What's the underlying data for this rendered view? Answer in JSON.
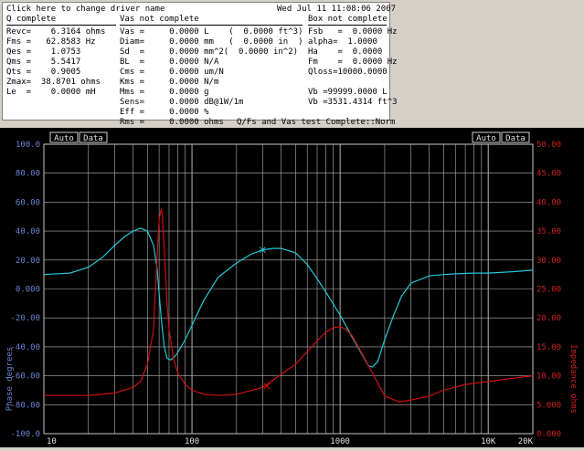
{
  "info": {
    "driver_link": "Click here to change driver name",
    "datetime": "Wed Jul 11 11:08:06 2007",
    "q_header": "Q complete",
    "vas_header": "Vas not complete",
    "box_header": "Box not complete",
    "q_params": [
      "Revc=    6.3164 ohms",
      "Fms =   62.8583 Hz",
      "Qes =    1.0753",
      "Qms =    5.5417",
      "Qts =    0.9005",
      "Zmax=  38.8701 ohms",
      "Le  =    0.0000 mH"
    ],
    "vas_params": [
      "Vas =     0.0000 L    (  0.0000 ft^3)",
      "Diam=     0.0000 mm   (  0.0000 in  )",
      "Sd  =     0.0000 mm^2(  0.0000 in^2)",
      "BL  =     0.0000 N/A",
      "Cms =     0.0000 um/N",
      "Kms =     0.0000 N/m",
      "Mms =     0.0000 g",
      "Sens=     0.0000 dB@1W/1m",
      "Eff =     0.0000 %",
      "Rms =     0.0000 ohms"
    ],
    "box_params": [
      "Fsb   =  0.0000 Hz",
      "alpha=  1.0000",
      "Ha    =  0.0000",
      "Fm    =  0.0000 Hz",
      "Qloss=10000.0000",
      "",
      "Vb =99999.0000 L",
      "Vb =3531.4314 ft^3"
    ],
    "status": "Q/Fs and Vas test Complete::Norm"
  },
  "graph": {
    "left_buttons": [
      "Auto",
      "Data"
    ],
    "right_buttons": [
      "Auto",
      "Data"
    ],
    "left_axis_label": "Phase degrees",
    "right_axis_label": "Impedance ohms",
    "left_ticks": [
      "100.0",
      "80.00",
      "60.00",
      "40.00",
      "20.00",
      "0.000",
      "-20.00",
      "-40.00",
      "-60.00",
      "-80.00",
      "-100.0"
    ],
    "right_ticks": [
      "50.00",
      "45.00",
      "40.00",
      "35.00",
      "30.00",
      "25.00",
      "20.00",
      "15.00",
      "10.00",
      "5.000",
      "0.000"
    ],
    "x_ticks": [
      "10",
      "100",
      "1000",
      "10K",
      "20K"
    ],
    "colors": {
      "phase": "#22c8d8",
      "impedance": "#cc1010",
      "left_axis": "#6b86d8",
      "right_axis": "#cc2020",
      "grid": "#b4b4b4"
    }
  },
  "chart_data": {
    "type": "line",
    "xscale": "log",
    "xlim": [
      10,
      20000
    ],
    "ylim_left": [
      -100,
      100
    ],
    "ylim_right": [
      0,
      50
    ],
    "series": [
      {
        "axis": "left",
        "x": [
          10,
          15,
          20,
          25,
          30,
          35,
          40,
          45,
          50,
          55,
          58,
          62,
          65,
          68,
          72,
          76,
          80,
          90,
          100,
          120,
          150,
          200,
          250,
          300,
          350,
          400,
          500,
          600,
          700,
          800,
          1000,
          1200,
          1400,
          1550,
          1650,
          1800,
          2000,
          2300,
          2600,
          3000,
          4000,
          5000,
          6000,
          8000,
          10000,
          15000,
          20000
        ],
        "y": [
          10,
          11,
          15,
          22,
          30,
          36,
          40,
          42,
          40,
          30,
          15,
          -20,
          -40,
          -48,
          -49,
          -47,
          -44,
          -35,
          -25,
          -8,
          8,
          18,
          24,
          27,
          28,
          28,
          25,
          17,
          7,
          -2,
          -18,
          -33,
          -45,
          -53,
          -54,
          -50,
          -35,
          -18,
          -5,
          4,
          9,
          10,
          10.5,
          11,
          11,
          12,
          13
        ]
      },
      {
        "axis": "right",
        "x": [
          10,
          20,
          30,
          40,
          45,
          50,
          55,
          58,
          60,
          62,
          63,
          65,
          68,
          70,
          75,
          80,
          90,
          100,
          120,
          150,
          200,
          300,
          500,
          700,
          800,
          900,
          1000,
          1100,
          1200,
          1500,
          2000,
          2500,
          3000,
          4000,
          5000,
          7000,
          10000,
          15000,
          20000
        ],
        "y": [
          6.6,
          6.6,
          7,
          8,
          9,
          12,
          18,
          30,
          37,
          38.8,
          38,
          32,
          22,
          18,
          13,
          10.5,
          8.5,
          7.5,
          6.8,
          6.6,
          6.8,
          8,
          12,
          16,
          17.5,
          18.3,
          18.5,
          18,
          17,
          12.5,
          6.5,
          5.5,
          5.8,
          6.5,
          7.5,
          8.5,
          9,
          9.6,
          10
        ]
      }
    ],
    "markers": [
      {
        "series": 0,
        "x": 300,
        "y": 27
      },
      {
        "series": 1,
        "x": 320,
        "y": 8.2
      }
    ]
  }
}
